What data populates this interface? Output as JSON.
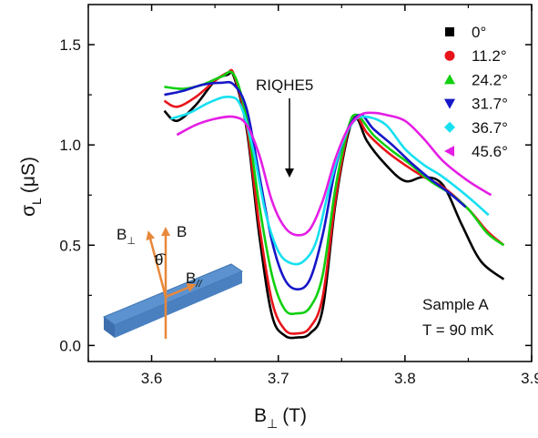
{
  "chart_data": {
    "type": "line",
    "xlabel": "B",
    "xlabel_sub": "⊥",
    "xlabel_unit": "(T)",
    "ylabel": "σ",
    "ylabel_sub": "L",
    "ylabel_unit": "(μS)",
    "xlim": [
      3.55,
      3.9
    ],
    "ylim": [
      -0.08,
      1.7
    ],
    "x_ticks": [
      "3.6",
      "3.7",
      "3.8",
      "3.9"
    ],
    "y_ticks": [
      "0.0",
      "0.5",
      "1.0",
      "1.5"
    ],
    "legend_position": "top-right",
    "grid": false,
    "annotations": {
      "arrow_label": "RIQHE5",
      "sample": "Sample A",
      "temperature": "T = 90 mK",
      "inset_b_perp": "B",
      "inset_b_perp_sub": "⊥",
      "inset_b": "B",
      "inset_theta": "θ",
      "inset_b_par": "B",
      "inset_b_par_sub": "//"
    },
    "series": [
      {
        "name": "0°",
        "color": "#000000",
        "marker": "square",
        "x": [
          3.61,
          3.62,
          3.635,
          3.65,
          3.66,
          3.665,
          3.675,
          3.685,
          3.695,
          3.705,
          3.715,
          3.725,
          3.735,
          3.745,
          3.755,
          3.762,
          3.77,
          3.785,
          3.8,
          3.815,
          3.83,
          3.845,
          3.86,
          3.878
        ],
        "y": [
          1.17,
          1.12,
          1.2,
          1.32,
          1.35,
          1.34,
          1.08,
          0.55,
          0.15,
          0.05,
          0.04,
          0.06,
          0.18,
          0.7,
          1.05,
          1.13,
          1.02,
          0.9,
          0.82,
          0.84,
          0.8,
          0.6,
          0.42,
          0.33
        ]
      },
      {
        "name": "11.2°",
        "color": "#e8141a",
        "marker": "circle",
        "x": [
          3.61,
          3.62,
          3.635,
          3.65,
          3.66,
          3.665,
          3.675,
          3.685,
          3.695,
          3.705,
          3.715,
          3.725,
          3.735,
          3.745,
          3.755,
          3.762,
          3.77,
          3.785,
          3.8,
          3.815,
          3.83,
          3.85,
          3.865,
          3.878
        ],
        "y": [
          1.22,
          1.19,
          1.24,
          1.32,
          1.36,
          1.35,
          1.1,
          0.6,
          0.22,
          0.08,
          0.06,
          0.09,
          0.24,
          0.72,
          1.07,
          1.14,
          1.06,
          0.97,
          0.9,
          0.84,
          0.79,
          0.68,
          0.57,
          0.5
        ]
      },
      {
        "name": "24.2°",
        "color": "#10d010",
        "marker": "triangle-up",
        "x": [
          3.61,
          3.625,
          3.64,
          3.655,
          3.665,
          3.675,
          3.685,
          3.695,
          3.705,
          3.715,
          3.725,
          3.735,
          3.745,
          3.755,
          3.762,
          3.775,
          3.79,
          3.805,
          3.82,
          3.835,
          3.85,
          3.865,
          3.878
        ],
        "y": [
          1.29,
          1.28,
          1.3,
          1.34,
          1.35,
          1.13,
          0.7,
          0.35,
          0.18,
          0.16,
          0.19,
          0.35,
          0.78,
          1.08,
          1.15,
          1.05,
          0.97,
          0.9,
          0.82,
          0.76,
          0.68,
          0.56,
          0.5
        ]
      },
      {
        "name": "31.7°",
        "color": "#1616c8",
        "marker": "triangle-down",
        "x": [
          3.61,
          3.625,
          3.64,
          3.655,
          3.665,
          3.675,
          3.685,
          3.695,
          3.705,
          3.715,
          3.725,
          3.735,
          3.745,
          3.755,
          3.765,
          3.775,
          3.79,
          3.805,
          3.82,
          3.835,
          3.848
        ],
        "y": [
          1.25,
          1.27,
          1.3,
          1.31,
          1.3,
          1.18,
          0.85,
          0.52,
          0.33,
          0.28,
          0.33,
          0.55,
          0.88,
          1.08,
          1.15,
          1.08,
          1.0,
          0.91,
          0.83,
          0.76,
          0.69
        ]
      },
      {
        "name": "36.7°",
        "color": "#16e0f0",
        "marker": "diamond",
        "x": [
          3.615,
          3.63,
          3.645,
          3.66,
          3.67,
          3.68,
          3.69,
          3.7,
          3.71,
          3.72,
          3.73,
          3.74,
          3.75,
          3.76,
          3.77,
          3.785,
          3.8,
          3.815,
          3.83,
          3.85,
          3.866
        ],
        "y": [
          1.13,
          1.16,
          1.21,
          1.24,
          1.2,
          0.98,
          0.66,
          0.47,
          0.41,
          0.42,
          0.52,
          0.78,
          1.0,
          1.12,
          1.14,
          1.1,
          0.98,
          0.9,
          0.84,
          0.74,
          0.65
        ]
      },
      {
        "name": "45.6°",
        "color": "#e41ee4",
        "marker": "triangle-left",
        "x": [
          3.62,
          3.635,
          3.65,
          3.665,
          3.675,
          3.685,
          3.695,
          3.705,
          3.715,
          3.725,
          3.735,
          3.745,
          3.755,
          3.765,
          3.775,
          3.785,
          3.8,
          3.815,
          3.83,
          3.85,
          3.868
        ],
        "y": [
          1.05,
          1.1,
          1.13,
          1.14,
          1.1,
          0.95,
          0.72,
          0.59,
          0.55,
          0.58,
          0.72,
          0.93,
          1.08,
          1.15,
          1.16,
          1.15,
          1.12,
          1.03,
          0.92,
          0.82,
          0.75
        ]
      }
    ]
  }
}
